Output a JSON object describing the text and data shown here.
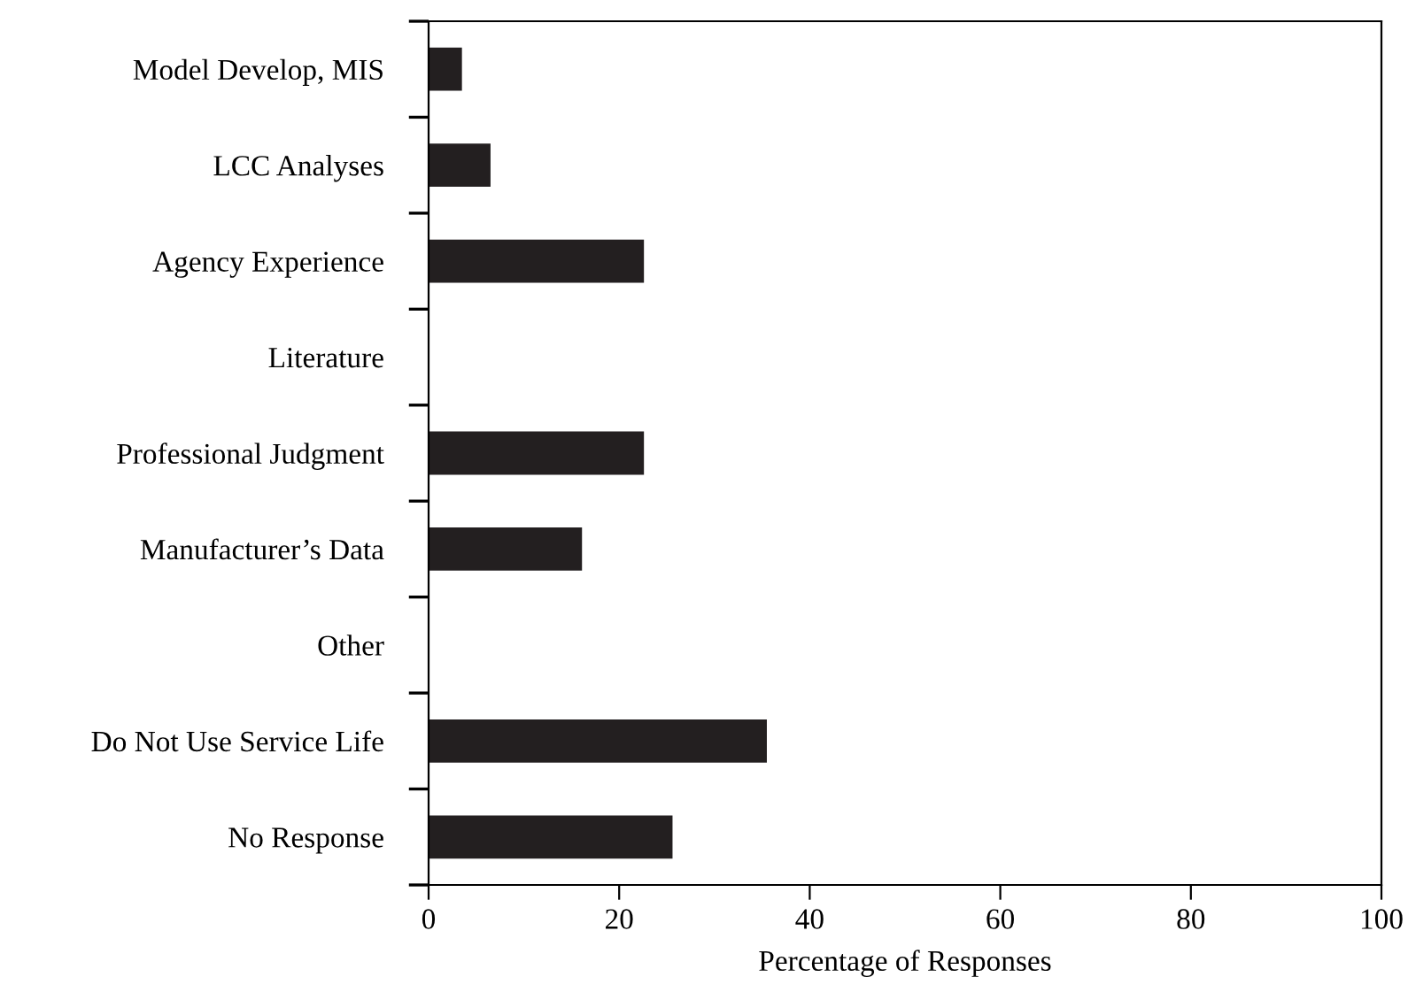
{
  "chart_data": {
    "type": "bar",
    "orientation": "horizontal",
    "xlabel": "Percentage of Responses",
    "categories": [
      "Model Develop, MIS",
      "LCC Analyses",
      "Agency Experience",
      "Literature",
      "Professional Judgment",
      "Manufacturer’s Data",
      "Other",
      "Do Not Use Service Life",
      "No Response"
    ],
    "values": [
      3.5,
      6.5,
      22.6,
      0,
      22.6,
      16.1,
      0,
      35.5,
      25.6
    ],
    "color": "#231f20",
    "xlim": [
      0,
      100
    ],
    "xticks": [
      0,
      20,
      40,
      60,
      80,
      100
    ],
    "grid": false,
    "legend": false
  }
}
